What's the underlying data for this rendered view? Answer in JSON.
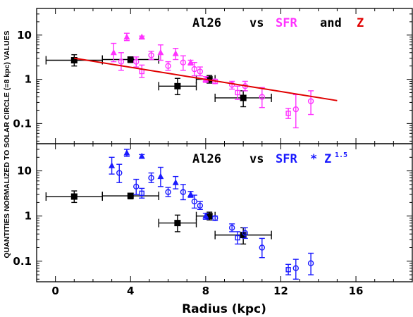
{
  "figure": {
    "ylabel": "QUANTITIES NORMALIZED TO SOLAR CIRCLE (=8 kpc) VALUES",
    "xlabel": "Radius (kpc)"
  },
  "colors": {
    "al26": "#000000",
    "sfr": "#ff33ff",
    "sfrz": "#1a1aff",
    "fit": "#e00000"
  },
  "panels": {
    "top": {
      "ann": {
        "a": "Al26",
        "b": "vs",
        "c": "SFR",
        "d": "and",
        "e": "Z"
      }
    },
    "bottom": {
      "ann": {
        "a": "Al26",
        "b": "vs",
        "c": "SFR",
        "d": "*",
        "e": "Z",
        "f": "1.5"
      }
    }
  },
  "chart_data": [
    {
      "type": "scatter",
      "title": "Al26 vs SFR and Z",
      "xlabel": "Radius (kpc)",
      "ylabel": "QUANTITIES NORMALIZED TO SOLAR CIRCLE (=8 kpc) VALUES",
      "xlim": [
        -1,
        19
      ],
      "ylim": [
        0.035,
        40
      ],
      "yscale": "log",
      "x_ticks": [
        0,
        4,
        8,
        12,
        16
      ],
      "y_ticks": [
        0.1,
        1,
        10
      ],
      "y_tick_labels": [
        "0.1",
        "1",
        "10"
      ],
      "series": [
        {
          "name": "Al26",
          "marker": "filled-square",
          "color": "#000000",
          "points": [
            {
              "x": 1.0,
              "y": 2.7,
              "xlo": -0.5,
              "xhi": 2.5,
              "ylo": 2.0,
              "yhi": 3.6
            },
            {
              "x": 4.0,
              "y": 2.8,
              "xlo": 2.5,
              "xhi": 5.5,
              "ylo": 2.4,
              "yhi": 3.2
            },
            {
              "x": 6.5,
              "y": 0.7,
              "xlo": 5.5,
              "xhi": 7.5,
              "ylo": 0.45,
              "yhi": 1.05
            },
            {
              "x": 8.2,
              "y": 1.0,
              "xlo": 7.5,
              "xhi": 8.5,
              "ylo": 0.82,
              "yhi": 1.22
            },
            {
              "x": 10.0,
              "y": 0.38,
              "xlo": 8.5,
              "xhi": 11.5,
              "ylo": 0.24,
              "yhi": 0.55
            }
          ]
        },
        {
          "name": "SFR",
          "color": "#ff33ff",
          "points": [
            {
              "x": 3.1,
              "y": 4.0,
              "ylo": 2.5,
              "yhi": 6.5,
              "m": "tri"
            },
            {
              "x": 3.5,
              "y": 2.5,
              "ylo": 1.6,
              "yhi": 4.0,
              "m": "circle"
            },
            {
              "x": 3.8,
              "y": 9.0,
              "ylo": 7.5,
              "yhi": 11.0,
              "m": "tri"
            },
            {
              "x": 4.3,
              "y": 2.5,
              "ylo": 1.9,
              "yhi": 3.2,
              "m": "circle"
            },
            {
              "x": 4.6,
              "y": 9.0,
              "ylo": 8.5,
              "yhi": 9.5,
              "m": "tri"
            },
            {
              "x": 4.6,
              "y": 1.5,
              "ylo": 1.1,
              "yhi": 2.1,
              "m": "square"
            },
            {
              "x": 5.1,
              "y": 3.5,
              "ylo": 2.8,
              "yhi": 4.3,
              "m": "circle"
            },
            {
              "x": 5.6,
              "y": 4.0,
              "ylo": 2.7,
              "yhi": 6.0,
              "m": "tri"
            },
            {
              "x": 6.0,
              "y": 2.0,
              "ylo": 1.6,
              "yhi": 2.5,
              "m": "circle"
            },
            {
              "x": 6.4,
              "y": 3.8,
              "ylo": 2.8,
              "yhi": 5.0,
              "m": "tri"
            },
            {
              "x": 6.8,
              "y": 2.4,
              "ylo": 1.6,
              "yhi": 3.4,
              "m": "circle"
            },
            {
              "x": 7.2,
              "y": 2.4,
              "ylo": 2.1,
              "yhi": 2.7,
              "m": "tri"
            },
            {
              "x": 7.4,
              "y": 1.7,
              "ylo": 1.2,
              "yhi": 2.4,
              "m": "circle"
            },
            {
              "x": 7.7,
              "y": 1.5,
              "ylo": 1.2,
              "yhi": 1.9,
              "m": "circle"
            },
            {
              "x": 8.0,
              "y": 1.0,
              "ylo": 0.85,
              "yhi": 1.15,
              "m": "tri"
            },
            {
              "x": 8.5,
              "y": 0.9,
              "ylo": 0.8,
              "yhi": 1.0,
              "m": "circle"
            },
            {
              "x": 9.4,
              "y": 0.75,
              "ylo": 0.6,
              "yhi": 0.9,
              "m": "circle"
            },
            {
              "x": 9.7,
              "y": 0.5,
              "ylo": 0.35,
              "yhi": 0.7,
              "m": "square"
            },
            {
              "x": 10.1,
              "y": 0.7,
              "ylo": 0.55,
              "yhi": 0.9,
              "m": "circle"
            },
            {
              "x": 11.0,
              "y": 0.4,
              "ylo": 0.23,
              "yhi": 0.65,
              "m": "circle"
            },
            {
              "x": 12.4,
              "y": 0.17,
              "ylo": 0.13,
              "yhi": 0.22,
              "m": "square"
            },
            {
              "x": 12.8,
              "y": 0.21,
              "ylo": 0.08,
              "yhi": 0.45,
              "m": "circle"
            },
            {
              "x": 13.6,
              "y": 0.32,
              "ylo": 0.16,
              "yhi": 0.55,
              "m": "circle"
            }
          ]
        },
        {
          "name": "Z",
          "type": "line",
          "color": "#e00000",
          "x": [
            1.0,
            15.0
          ],
          "y": [
            3.0,
            0.33
          ]
        }
      ]
    },
    {
      "type": "scatter",
      "title": "Al26 vs SFR * Z^1.5",
      "xlabel": "Radius (kpc)",
      "ylabel": "QUANTITIES NORMALIZED TO SOLAR CIRCLE (=8 kpc) VALUES",
      "xlim": [
        -1,
        19
      ],
      "ylim": [
        0.035,
        40
      ],
      "yscale": "log",
      "x_ticks": [
        0,
        4,
        8,
        12,
        16
      ],
      "y_ticks": [
        0.1,
        1,
        10
      ],
      "y_tick_labels": [
        "0.1",
        "1",
        "10"
      ],
      "series": [
        {
          "name": "Al26",
          "marker": "filled-square",
          "color": "#000000",
          "points": [
            {
              "x": 1.0,
              "y": 2.7,
              "xlo": -0.5,
              "xhi": 2.5,
              "ylo": 2.0,
              "yhi": 3.6
            },
            {
              "x": 4.0,
              "y": 2.8,
              "xlo": 2.5,
              "xhi": 5.5,
              "ylo": 2.4,
              "yhi": 3.2
            },
            {
              "x": 6.5,
              "y": 0.7,
              "xlo": 5.5,
              "xhi": 7.5,
              "ylo": 0.45,
              "yhi": 1.05
            },
            {
              "x": 8.2,
              "y": 1.0,
              "xlo": 7.5,
              "xhi": 8.5,
              "ylo": 0.82,
              "yhi": 1.22
            },
            {
              "x": 10.0,
              "y": 0.38,
              "xlo": 8.5,
              "xhi": 11.5,
              "ylo": 0.24,
              "yhi": 0.55
            }
          ]
        },
        {
          "name": "SFR * Z^1.5",
          "color": "#1a1aff",
          "points": [
            {
              "x": 3.0,
              "y": 13.0,
              "ylo": 8.5,
              "yhi": 20.0,
              "m": "tri"
            },
            {
              "x": 3.4,
              "y": 9.0,
              "ylo": 5.5,
              "yhi": 14.0,
              "m": "circle"
            },
            {
              "x": 3.8,
              "y": 25.0,
              "ylo": 21.0,
              "yhi": 30.0,
              "m": "tri"
            },
            {
              "x": 4.3,
              "y": 4.5,
              "ylo": 3.0,
              "yhi": 6.5,
              "m": "circle"
            },
            {
              "x": 4.6,
              "y": 21.0,
              "ylo": 19.0,
              "yhi": 23.0,
              "m": "tri"
            },
            {
              "x": 4.6,
              "y": 3.2,
              "ylo": 2.5,
              "yhi": 4.1,
              "m": "square"
            },
            {
              "x": 5.1,
              "y": 7.0,
              "ylo": 5.5,
              "yhi": 9.0,
              "m": "circle"
            },
            {
              "x": 5.6,
              "y": 7.5,
              "ylo": 4.5,
              "yhi": 12.0,
              "m": "tri"
            },
            {
              "x": 6.0,
              "y": 3.4,
              "ylo": 2.7,
              "yhi": 4.3,
              "m": "circle"
            },
            {
              "x": 6.4,
              "y": 5.5,
              "ylo": 4.0,
              "yhi": 7.5,
              "m": "tri"
            },
            {
              "x": 6.8,
              "y": 3.4,
              "ylo": 2.3,
              "yhi": 5.0,
              "m": "circle"
            },
            {
              "x": 7.2,
              "y": 3.0,
              "ylo": 2.6,
              "yhi": 3.5,
              "m": "tri"
            },
            {
              "x": 7.4,
              "y": 2.1,
              "ylo": 1.5,
              "yhi": 2.9,
              "m": "circle"
            },
            {
              "x": 7.7,
              "y": 1.7,
              "ylo": 1.4,
              "yhi": 2.1,
              "m": "circle"
            },
            {
              "x": 8.0,
              "y": 1.0,
              "ylo": 0.85,
              "yhi": 1.15,
              "m": "tri"
            },
            {
              "x": 8.5,
              "y": 0.9,
              "ylo": 0.8,
              "yhi": 1.0,
              "m": "circle"
            },
            {
              "x": 9.4,
              "y": 0.55,
              "ylo": 0.45,
              "yhi": 0.67,
              "m": "circle"
            },
            {
              "x": 9.7,
              "y": 0.33,
              "ylo": 0.24,
              "yhi": 0.45,
              "m": "square"
            },
            {
              "x": 10.1,
              "y": 0.42,
              "ylo": 0.32,
              "yhi": 0.55,
              "m": "circle"
            },
            {
              "x": 11.0,
              "y": 0.2,
              "ylo": 0.12,
              "yhi": 0.32,
              "m": "circle"
            },
            {
              "x": 12.4,
              "y": 0.065,
              "ylo": 0.05,
              "yhi": 0.085,
              "m": "square"
            },
            {
              "x": 12.8,
              "y": 0.07,
              "ylo": 0.04,
              "yhi": 0.11,
              "m": "circle"
            },
            {
              "x": 13.6,
              "y": 0.09,
              "ylo": 0.05,
              "yhi": 0.15,
              "m": "circle"
            }
          ]
        }
      ]
    }
  ]
}
